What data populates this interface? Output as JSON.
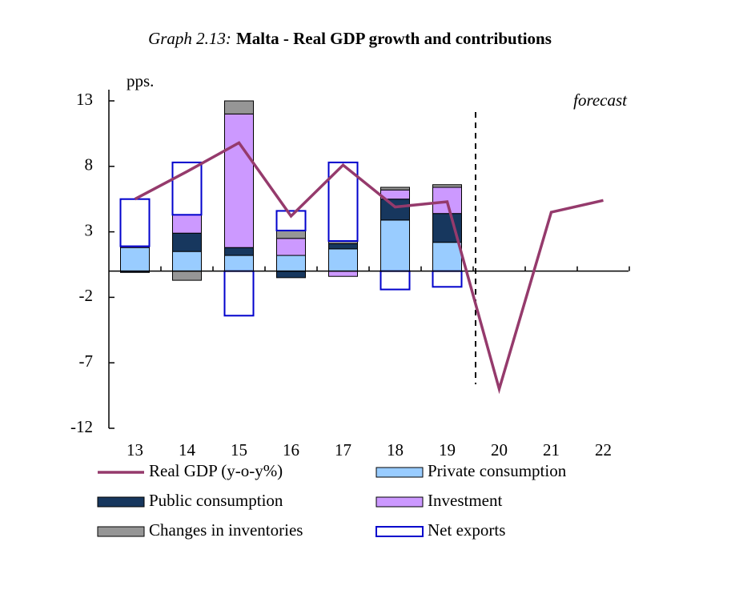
{
  "chart_data": {
    "type": "stacked-bar-line",
    "title_prefix": "Graph 2.13:",
    "title": "Malta - Real GDP growth and contributions",
    "y_label": "pps.",
    "annotation": "forecast",
    "categories": [
      "13",
      "14",
      "15",
      "16",
      "17",
      "18",
      "19",
      "20",
      "21",
      "22"
    ],
    "ylim": [
      -12,
      13
    ],
    "yticks": [
      13,
      8,
      3,
      -2,
      -7,
      -12
    ],
    "series": [
      {
        "name": "Real GDP (y-o-y%)",
        "kind": "line",
        "color": "#953a6c",
        "values": [
          5.5,
          7.6,
          9.8,
          4.2,
          8.1,
          4.9,
          5.3,
          -9.0,
          4.5,
          5.4
        ]
      },
      {
        "name": "Private consumption",
        "kind": "bar",
        "color": "#99ccff",
        "values": [
          1.8,
          1.5,
          1.2,
          1.2,
          1.7,
          3.9,
          2.2,
          null,
          null,
          null
        ]
      },
      {
        "name": "Public consumption",
        "kind": "bar",
        "color": "#17375e",
        "values": [
          -0.1,
          1.4,
          0.6,
          -0.5,
          0.4,
          1.6,
          2.2,
          null,
          null,
          null
        ]
      },
      {
        "name": "Investment",
        "kind": "bar",
        "color": "#cc99ff",
        "values": [
          0.1,
          1.4,
          10.2,
          1.3,
          -0.4,
          0.7,
          2.0,
          null,
          null,
          null
        ]
      },
      {
        "name": "Changes in inventories",
        "kind": "bar",
        "color": "#969696",
        "values": [
          0,
          -0.7,
          1.0,
          0.6,
          0.2,
          0.2,
          0.2,
          null,
          null,
          null
        ]
      },
      {
        "name": "Net exports",
        "kind": "bar",
        "color": "#0000cc",
        "hollow": true,
        "values": [
          3.6,
          4.0,
          -3.4,
          1.5,
          6.0,
          -1.4,
          -1.2,
          null,
          null,
          null
        ]
      }
    ]
  }
}
